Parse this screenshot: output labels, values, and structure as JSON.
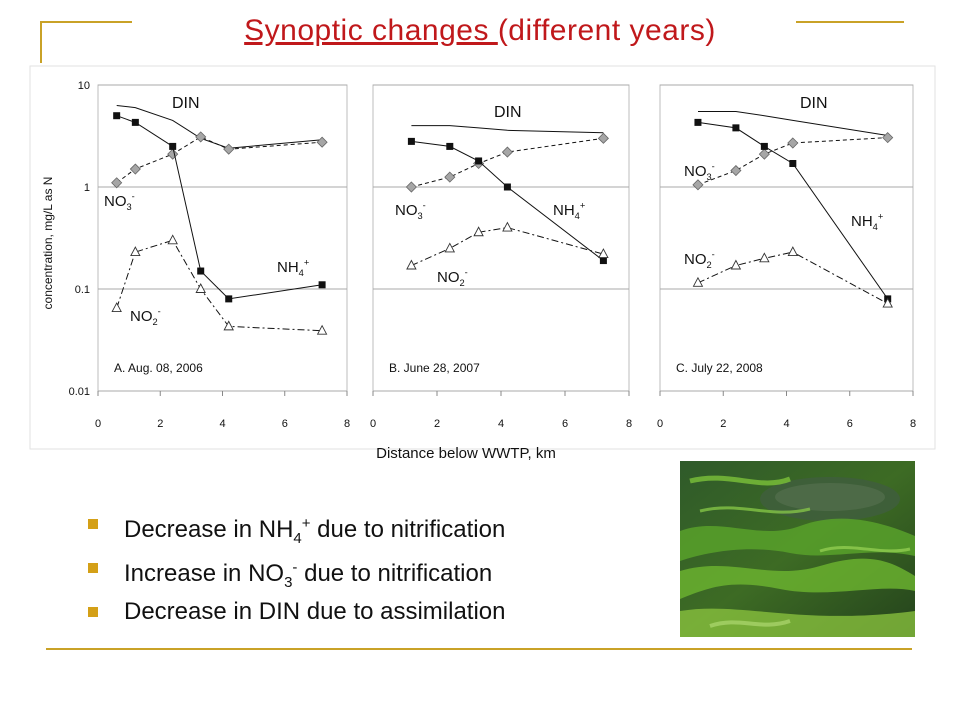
{
  "slide": {
    "title_underlined": "Synoptic changes ",
    "title_rest": "(different years)",
    "accent_color": "#c0181b",
    "rule_color": "#c9a227",
    "bullet_color": "#d4a017"
  },
  "bullets": [
    {
      "pre": "Decrease in NH",
      "sub": "4",
      "sup": "+",
      "post": " due to nitrification"
    },
    {
      "pre": "Increase in NO",
      "sub": "3",
      "sup": "-",
      "post": " due to nitrification"
    },
    {
      "pre": "Decrease in DIN due to assimilation",
      "sub": "",
      "sup": "",
      "post": ""
    }
  ],
  "photo": {
    "subject": "green submerged aquatic plants (algae) in clear stream water"
  },
  "chart_data": [
    {
      "type": "line",
      "panel": "A",
      "annotation": "A. Aug. 08, 2006",
      "ylabel": "concentration, mg/L as N",
      "xlabel": "",
      "yscale": "log",
      "ylim": [
        0.01,
        10
      ],
      "yticks": [
        "10",
        "1",
        "0.1",
        "0.01"
      ],
      "xlim": [
        0,
        8
      ],
      "xticks": [
        "0",
        "2",
        "4",
        "6",
        "8"
      ],
      "grid": true,
      "series": [
        {
          "name": "DIN",
          "style": "solid-no-marker",
          "points": [
            [
              0.6,
              6.3
            ],
            [
              1.2,
              6.0
            ],
            [
              2.4,
              4.5
            ],
            [
              3.3,
              3.0
            ],
            [
              4.2,
              2.4
            ],
            [
              7.2,
              2.9
            ]
          ]
        },
        {
          "name": "NO3-",
          "style": "dashed-diamond",
          "points": [
            [
              0.6,
              1.1
            ],
            [
              1.2,
              1.5
            ],
            [
              2.4,
              2.1
            ],
            [
              3.3,
              3.1
            ],
            [
              4.2,
              2.35
            ],
            [
              7.2,
              2.75
            ]
          ]
        },
        {
          "name": "NH4+",
          "style": "solid-square",
          "points": [
            [
              0.6,
              5.0
            ],
            [
              1.2,
              4.3
            ],
            [
              2.4,
              2.5
            ],
            [
              3.3,
              0.15
            ],
            [
              4.2,
              0.08
            ],
            [
              7.2,
              0.11
            ]
          ]
        },
        {
          "name": "NO2-",
          "style": "dashdot-triangle",
          "points": [
            [
              0.6,
              0.065
            ],
            [
              1.2,
              0.23
            ],
            [
              2.4,
              0.3
            ],
            [
              3.3,
              0.1
            ],
            [
              4.2,
              0.043
            ],
            [
              7.2,
              0.039
            ]
          ]
        }
      ]
    },
    {
      "type": "line",
      "panel": "B",
      "annotation": "B. June 28, 2007",
      "yscale": "log",
      "ylim": [
        0.01,
        10
      ],
      "xlim": [
        0,
        8
      ],
      "xticks": [
        "0",
        "2",
        "4",
        "6",
        "8"
      ],
      "grid": true,
      "series": [
        {
          "name": "DIN",
          "style": "solid-no-marker",
          "points": [
            [
              1.2,
              4.0
            ],
            [
              2.4,
              4.0
            ],
            [
              3.3,
              3.8
            ],
            [
              4.2,
              3.6
            ],
            [
              7.2,
              3.4
            ]
          ]
        },
        {
          "name": "NO3-",
          "style": "dashed-diamond",
          "points": [
            [
              1.2,
              1.0
            ],
            [
              2.4,
              1.25
            ],
            [
              3.3,
              1.7
            ],
            [
              4.2,
              2.2
            ],
            [
              7.2,
              3.0
            ]
          ]
        },
        {
          "name": "NH4+",
          "style": "solid-square",
          "points": [
            [
              1.2,
              2.8
            ],
            [
              2.4,
              2.5
            ],
            [
              3.3,
              1.8
            ],
            [
              4.2,
              1.0
            ],
            [
              7.2,
              0.19
            ]
          ]
        },
        {
          "name": "NO2-",
          "style": "dashdot-triangle",
          "points": [
            [
              1.2,
              0.17
            ],
            [
              2.4,
              0.25
            ],
            [
              3.3,
              0.36
            ],
            [
              4.2,
              0.4
            ],
            [
              7.2,
              0.22
            ]
          ]
        }
      ]
    },
    {
      "type": "line",
      "panel": "C",
      "annotation": "C. July 22, 2008",
      "yscale": "log",
      "ylim": [
        0.01,
        10
      ],
      "xlim": [
        0,
        8
      ],
      "xticks": [
        "0",
        "2",
        "4",
        "6",
        "8"
      ],
      "grid": true,
      "series": [
        {
          "name": "DIN",
          "style": "solid-no-marker",
          "points": [
            [
              1.2,
              5.5
            ],
            [
              2.4,
              5.5
            ],
            [
              3.3,
              5.0
            ],
            [
              4.2,
              4.5
            ],
            [
              7.2,
              3.2
            ]
          ]
        },
        {
          "name": "NO3-",
          "style": "dashed-diamond",
          "points": [
            [
              1.2,
              1.05
            ],
            [
              2.4,
              1.45
            ],
            [
              3.3,
              2.1
            ],
            [
              4.2,
              2.7
            ],
            [
              7.2,
              3.05
            ]
          ]
        },
        {
          "name": "NH4+",
          "style": "solid-square",
          "points": [
            [
              1.2,
              4.3
            ],
            [
              2.4,
              3.8
            ],
            [
              3.3,
              2.5
            ],
            [
              4.2,
              1.7
            ],
            [
              7.2,
              0.08
            ]
          ]
        },
        {
          "name": "NO2-",
          "style": "dashdot-triangle",
          "points": [
            [
              1.2,
              0.115
            ],
            [
              2.4,
              0.17
            ],
            [
              3.3,
              0.2
            ],
            [
              4.2,
              0.23
            ],
            [
              7.2,
              0.072
            ]
          ]
        }
      ]
    }
  ],
  "shared_xlabel": "Distance below WWTP, km",
  "labels": {
    "din": "DIN",
    "no3": {
      "base": "NO",
      "sub": "3",
      "sup": "-"
    },
    "nh4": {
      "base": "NH",
      "sub": "4",
      "sup": "+"
    },
    "no2": {
      "base": "NO",
      "sub": "2",
      "sup": "-"
    }
  }
}
